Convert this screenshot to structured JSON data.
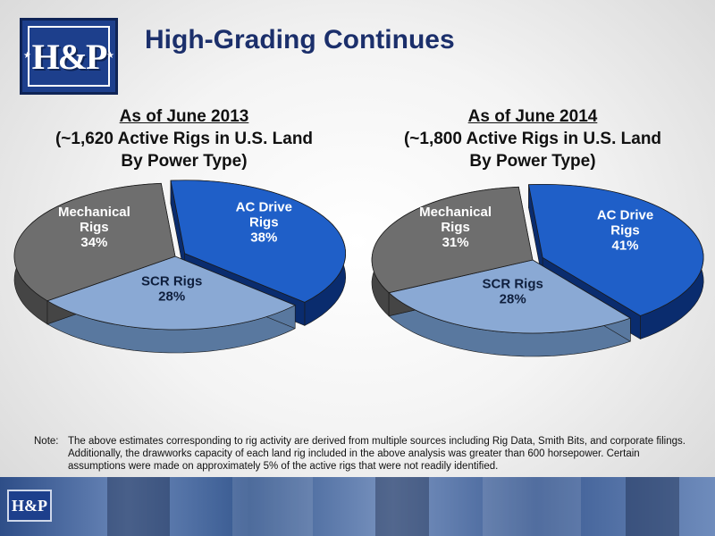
{
  "logo": {
    "text": "H&P"
  },
  "title": "High-Grading Continues",
  "charts": [
    {
      "heading_line1": "As of June 2013",
      "heading_line2": "(~1,620 Active Rigs in U.S. Land",
      "heading_line3": "By Power Type)"
    },
    {
      "heading_line1": "As of June 2014",
      "heading_line2": "(~1,800 Active Rigs in U.S. Land",
      "heading_line3": "By Power Type)"
    }
  ],
  "chart_data": [
    {
      "type": "pie",
      "title": "As of June 2013 (~1,620 Active Rigs in U.S. Land By Power Type)",
      "slices": [
        {
          "label": "AC Drive Rigs",
          "value": 38,
          "display": "38%",
          "color": "#1f5fc8",
          "side_color": "#0a2c6e",
          "exploded": true
        },
        {
          "label": "SCR Rigs",
          "value": 28,
          "display": "28%",
          "color": "#8aa9d4",
          "side_color": "#59789f",
          "exploded": false
        },
        {
          "label": "Mechanical Rigs",
          "value": 34,
          "display": "34%",
          "color": "#6e6e6e",
          "side_color": "#454545",
          "exploded": false
        }
      ]
    },
    {
      "type": "pie",
      "title": "As of June 2014 (~1,800 Active Rigs in U.S. Land By Power Type)",
      "slices": [
        {
          "label": "AC Drive Rigs",
          "value": 41,
          "display": "41%",
          "color": "#1f5fc8",
          "side_color": "#0a2c6e",
          "exploded": true
        },
        {
          "label": "SCR Rigs",
          "value": 28,
          "display": "28%",
          "color": "#8aa9d4",
          "side_color": "#59789f",
          "exploded": false
        },
        {
          "label": "Mechanical Rigs",
          "value": 31,
          "display": "31%",
          "color": "#6e6e6e",
          "side_color": "#454545",
          "exploded": false
        }
      ]
    }
  ],
  "note": {
    "label": "Note:",
    "text": "The above estimates corresponding to rig activity are derived from multiple sources including Rig Data, Smith Bits, and corporate filings.  Additionally, the drawworks capacity of each land rig included in the above analysis was greater than 600 horsepower. Certain assumptions were made on approximately 5% of the active rigs that were not readily identified."
  },
  "footer": {
    "logo_text": "H&P"
  }
}
